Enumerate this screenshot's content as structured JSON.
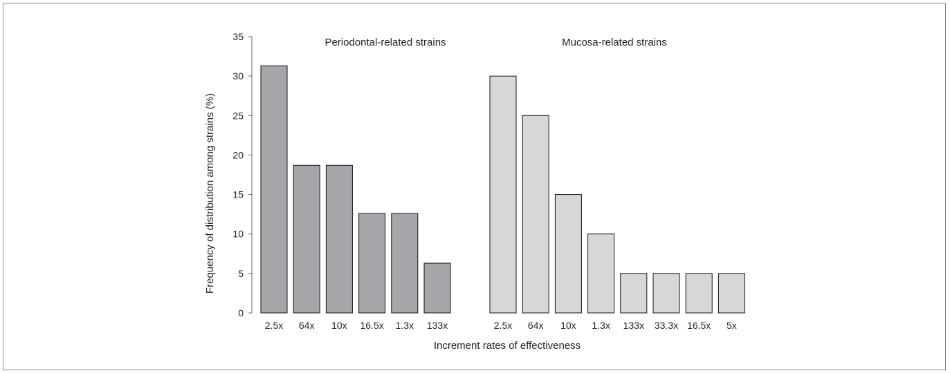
{
  "chart_data": {
    "type": "bar",
    "title": "",
    "xlabel": "Increment rates of effectiveness",
    "ylabel": "Frequency of distribution among strains (%)",
    "ylim": [
      0,
      35
    ],
    "yticks": [
      0,
      5,
      10,
      15,
      20,
      25,
      30,
      35
    ],
    "grid": false,
    "legend": "none",
    "groups": [
      {
        "name": "Periodontal-related strains",
        "color": "#a6a7aa",
        "categories": [
          "2.5x",
          "64x",
          "10x",
          "16.5x",
          "1.3x",
          "133x"
        ],
        "values": [
          31.3,
          18.7,
          18.7,
          12.6,
          12.6,
          6.3
        ]
      },
      {
        "name": "Mucosa-related strains",
        "color": "#d6d7d9",
        "categories": [
          "2.5x",
          "64x",
          "10x",
          "1.3x",
          "133x",
          "33.3x",
          "16.5x",
          "5x"
        ],
        "values": [
          30,
          25,
          15,
          10,
          5,
          5,
          5,
          5
        ]
      }
    ]
  }
}
